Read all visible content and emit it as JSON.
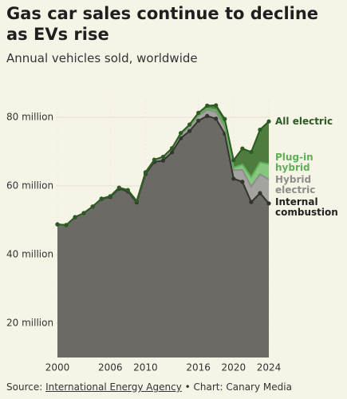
{
  "chart_data": {
    "type": "stacked_area",
    "title": "Gas car sales continue to decline as EVs rise",
    "subtitle": "Annual vehicles sold, worldwide",
    "x": [
      2000,
      2001,
      2002,
      2003,
      2004,
      2005,
      2006,
      2007,
      2008,
      2009,
      2010,
      2011,
      2012,
      2013,
      2014,
      2015,
      2016,
      2017,
      2018,
      2019,
      2020,
      2021,
      2022,
      2023,
      2024
    ],
    "series": [
      {
        "name": "Internal combustion",
        "color": "#6b6a65",
        "line_color": "#34342f",
        "values": [
          48.8,
          48.6,
          50.9,
          52.1,
          54.0,
          56.2,
          56.8,
          59.2,
          58.4,
          55.2,
          63.5,
          67.0,
          67.4,
          69.8,
          73.9,
          76.0,
          79.0,
          80.4,
          79.6,
          75.2,
          62.1,
          61.2,
          55.3,
          57.9,
          54.9
        ]
      },
      {
        "name": "Hybrid electric",
        "color": "#a3a3a0",
        "line_color": "#8d8d89",
        "values": [
          0,
          0,
          0,
          0,
          0,
          0.1,
          0.2,
          0.3,
          0.4,
          0.4,
          0.5,
          0.6,
          0.9,
          1.0,
          1.2,
          1.3,
          1.5,
          1.8,
          2.0,
          2.2,
          2.5,
          3.5,
          4.5,
          5.5,
          7.0
        ]
      },
      {
        "name": "Plug-in hybrid",
        "color": "#86c77f",
        "line_color": "#5fae58",
        "values": [
          0,
          0,
          0,
          0,
          0,
          0,
          0,
          0,
          0,
          0,
          0,
          0,
          0.1,
          0.1,
          0.1,
          0.3,
          0.3,
          0.4,
          0.6,
          0.5,
          0.7,
          1.6,
          2.8,
          3.5,
          4.5
        ]
      },
      {
        "name": "All electric",
        "color": "#4d7c3e",
        "line_color": "#2c5a22",
        "values": [
          0,
          0,
          0,
          0,
          0,
          0,
          0,
          0,
          0,
          0,
          0,
          0.05,
          0.1,
          0.1,
          0.2,
          0.3,
          0.5,
          0.8,
          1.3,
          1.6,
          2.2,
          4.6,
          7.3,
          9.5,
          12.4
        ]
      }
    ],
    "xlim": [
      2000,
      2024
    ],
    "xticks": [
      2000,
      2006,
      2010,
      2016,
      2020,
      2024
    ],
    "ylim": [
      10,
      85
    ],
    "yticks": [
      {
        "value": 20,
        "label": "20 million"
      },
      {
        "value": 40,
        "label": "40 million"
      },
      {
        "value": 60,
        "label": "60 million"
      },
      {
        "value": 80,
        "label": "80 million"
      }
    ],
    "grid": true,
    "source": {
      "prefix": "Source: ",
      "link": "International Energy Agency",
      "suffix": " • Chart: Canary Media"
    }
  }
}
